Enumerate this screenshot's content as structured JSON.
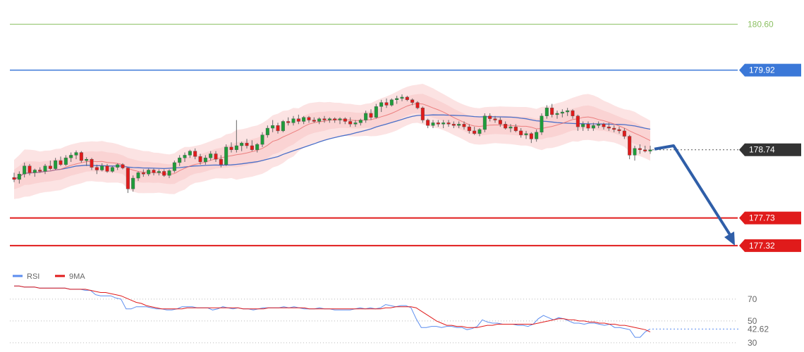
{
  "chart_data": {
    "type": "candlestick",
    "price_scale": {
      "min": 177.1,
      "max": 180.75
    },
    "levels": [
      {
        "label": "180.60",
        "value": 180.6,
        "color": "#8cc063",
        "style": "text"
      },
      {
        "label": "179.92",
        "value": 179.92,
        "color": "#3b78d8",
        "style": "tag"
      },
      {
        "label": "178.74",
        "value": 178.74,
        "color": "#333333",
        "style": "tag-dotted"
      },
      {
        "label": "177.73",
        "value": 177.73,
        "color": "#e01b1b",
        "style": "tag"
      },
      {
        "label": "177.32",
        "value": 177.32,
        "color": "#e01b1b",
        "style": "tag"
      }
    ],
    "colors": {
      "up": "#1e9c3a",
      "down": "#e01b1b",
      "band": "#fbd9d9",
      "ma_fast": "#e86a6a",
      "ma_slow": "#4a6fc8",
      "arrow": "#2f5ea8"
    },
    "candles": [
      [
        178.33,
        178.4,
        178.26,
        178.3
      ],
      [
        178.3,
        178.42,
        178.24,
        178.38
      ],
      [
        178.38,
        178.55,
        178.33,
        178.5
      ],
      [
        178.5,
        178.53,
        178.36,
        178.4
      ],
      [
        178.4,
        178.46,
        178.34,
        178.44
      ],
      [
        178.44,
        178.48,
        178.4,
        178.42
      ],
      [
        178.42,
        178.53,
        178.38,
        178.5
      ],
      [
        178.5,
        178.58,
        178.44,
        178.46
      ],
      [
        178.46,
        178.62,
        178.44,
        178.58
      ],
      [
        178.58,
        178.64,
        178.5,
        178.52
      ],
      [
        178.52,
        178.66,
        178.5,
        178.62
      ],
      [
        178.62,
        178.7,
        178.56,
        178.66
      ],
      [
        178.66,
        178.73,
        178.6,
        178.7
      ],
      [
        178.7,
        178.72,
        178.55,
        178.58
      ],
      [
        178.58,
        178.63,
        178.5,
        178.6
      ],
      [
        178.6,
        178.62,
        178.44,
        178.48
      ],
      [
        178.48,
        178.52,
        178.38,
        178.44
      ],
      [
        178.44,
        178.54,
        178.42,
        178.5
      ],
      [
        178.5,
        178.53,
        178.4,
        178.42
      ],
      [
        178.42,
        178.5,
        178.4,
        178.48
      ],
      [
        178.48,
        178.54,
        178.44,
        178.52
      ],
      [
        178.52,
        178.54,
        178.45,
        178.47
      ],
      [
        178.47,
        178.48,
        178.1,
        178.16
      ],
      [
        178.16,
        178.36,
        178.12,
        178.32
      ],
      [
        178.32,
        178.42,
        178.28,
        178.4
      ],
      [
        178.4,
        178.45,
        178.34,
        178.38
      ],
      [
        178.38,
        178.46,
        178.35,
        178.44
      ],
      [
        178.44,
        178.46,
        178.36,
        178.4
      ],
      [
        178.4,
        178.45,
        178.36,
        178.42
      ],
      [
        178.42,
        178.45,
        178.34,
        178.36
      ],
      [
        178.36,
        178.45,
        178.32,
        178.43
      ],
      [
        178.43,
        178.58,
        178.4,
        178.55
      ],
      [
        178.55,
        178.66,
        178.5,
        178.62
      ],
      [
        178.62,
        178.7,
        178.56,
        178.66
      ],
      [
        178.66,
        178.74,
        178.62,
        178.72
      ],
      [
        178.72,
        178.76,
        178.6,
        178.64
      ],
      [
        178.64,
        178.68,
        178.52,
        178.56
      ],
      [
        178.56,
        178.66,
        178.52,
        178.62
      ],
      [
        178.62,
        178.72,
        178.58,
        178.68
      ],
      [
        178.68,
        178.72,
        178.56,
        178.6
      ],
      [
        178.6,
        178.66,
        178.48,
        178.52
      ],
      [
        178.52,
        178.82,
        178.5,
        178.78
      ],
      [
        178.78,
        178.85,
        178.7,
        178.74
      ],
      [
        178.74,
        179.18,
        178.7,
        178.8
      ],
      [
        178.8,
        178.86,
        178.72,
        178.84
      ],
      [
        178.84,
        178.9,
        178.76,
        178.8
      ],
      [
        178.8,
        178.88,
        178.72,
        178.74
      ],
      [
        178.74,
        178.84,
        178.7,
        178.82
      ],
      [
        178.82,
        179.0,
        178.78,
        178.96
      ],
      [
        178.96,
        179.1,
        178.92,
        179.06
      ],
      [
        179.06,
        179.18,
        179.0,
        179.1
      ],
      [
        179.1,
        179.14,
        178.98,
        179.02
      ],
      [
        179.02,
        179.18,
        179.0,
        179.16
      ],
      [
        179.16,
        179.22,
        179.1,
        179.14
      ],
      [
        179.14,
        179.24,
        179.1,
        179.2
      ],
      [
        179.2,
        179.26,
        179.12,
        179.16
      ],
      [
        179.16,
        179.24,
        179.12,
        179.22
      ],
      [
        179.22,
        179.24,
        179.14,
        179.18
      ],
      [
        179.18,
        179.22,
        179.14,
        179.16
      ],
      [
        179.16,
        179.22,
        179.12,
        179.2
      ],
      [
        179.2,
        179.24,
        179.14,
        179.18
      ],
      [
        179.18,
        179.22,
        179.14,
        179.2
      ],
      [
        179.2,
        179.22,
        179.14,
        179.18
      ],
      [
        179.18,
        179.22,
        179.12,
        179.2
      ],
      [
        179.2,
        179.22,
        179.12,
        179.16
      ],
      [
        179.16,
        179.22,
        179.08,
        179.12
      ],
      [
        179.12,
        179.18,
        179.08,
        179.14
      ],
      [
        179.14,
        179.2,
        179.1,
        179.18
      ],
      [
        179.18,
        179.32,
        179.14,
        179.28
      ],
      [
        179.28,
        179.34,
        179.18,
        179.22
      ],
      [
        179.22,
        179.42,
        179.2,
        179.38
      ],
      [
        179.38,
        179.48,
        179.3,
        179.44
      ],
      [
        179.44,
        179.5,
        179.36,
        179.4
      ],
      [
        179.4,
        179.5,
        179.38,
        179.48
      ],
      [
        179.48,
        179.54,
        179.42,
        179.5
      ],
      [
        179.5,
        179.56,
        179.46,
        179.52
      ],
      [
        179.52,
        179.54,
        179.46,
        179.48
      ],
      [
        179.48,
        179.5,
        179.4,
        179.44
      ],
      [
        179.44,
        179.46,
        179.34,
        179.36
      ],
      [
        179.36,
        179.38,
        179.14,
        179.18
      ],
      [
        179.18,
        179.2,
        179.06,
        179.1
      ],
      [
        179.1,
        179.18,
        179.06,
        179.14
      ],
      [
        179.14,
        179.18,
        179.08,
        179.12
      ],
      [
        179.12,
        179.18,
        179.06,
        179.14
      ],
      [
        179.14,
        179.18,
        179.08,
        179.12
      ],
      [
        179.12,
        179.16,
        179.06,
        179.1
      ],
      [
        179.1,
        179.16,
        179.06,
        179.12
      ],
      [
        179.12,
        179.16,
        179.04,
        179.08
      ],
      [
        179.08,
        179.12,
        178.98,
        179.02
      ],
      [
        179.02,
        179.08,
        178.96,
        178.98
      ],
      [
        178.98,
        179.06,
        178.94,
        179.04
      ],
      [
        179.04,
        179.28,
        179.0,
        179.24
      ],
      [
        179.24,
        179.28,
        179.16,
        179.2
      ],
      [
        179.2,
        179.24,
        179.14,
        179.18
      ],
      [
        179.18,
        179.22,
        179.08,
        179.12
      ],
      [
        179.12,
        179.16,
        179.04,
        179.06
      ],
      [
        179.06,
        179.12,
        179.0,
        179.08
      ],
      [
        179.08,
        179.12,
        179.0,
        179.02
      ],
      [
        179.02,
        179.06,
        178.92,
        178.96
      ],
      [
        178.96,
        179.02,
        178.9,
        178.98
      ],
      [
        178.98,
        179.0,
        178.84,
        178.9
      ],
      [
        178.9,
        179.04,
        178.86,
        179.0
      ],
      [
        179.0,
        179.28,
        178.96,
        179.24
      ],
      [
        179.24,
        179.4,
        179.2,
        179.36
      ],
      [
        179.36,
        179.42,
        179.22,
        179.26
      ],
      [
        179.26,
        179.32,
        179.2,
        179.28
      ],
      [
        179.28,
        179.34,
        179.22,
        179.3
      ],
      [
        179.3,
        179.36,
        179.24,
        179.32
      ],
      [
        179.32,
        179.34,
        179.2,
        179.24
      ],
      [
        179.24,
        179.26,
        179.02,
        179.08
      ],
      [
        179.08,
        179.16,
        179.02,
        179.12
      ],
      [
        179.12,
        179.16,
        179.02,
        179.06
      ],
      [
        179.06,
        179.14,
        179.02,
        179.1
      ],
      [
        179.1,
        179.16,
        179.06,
        179.12
      ],
      [
        179.12,
        179.14,
        179.04,
        179.08
      ],
      [
        179.08,
        179.14,
        179.02,
        179.06
      ],
      [
        179.06,
        179.1,
        179.0,
        179.04
      ],
      [
        179.04,
        179.08,
        178.98,
        179.02
      ],
      [
        179.02,
        179.06,
        178.9,
        178.94
      ],
      [
        178.94,
        178.96,
        178.6,
        178.66
      ],
      [
        178.66,
        178.8,
        178.58,
        178.76
      ],
      [
        178.76,
        178.82,
        178.68,
        178.74
      ],
      [
        178.74,
        178.8,
        178.7,
        178.72
      ],
      [
        178.72,
        178.8,
        178.68,
        178.74
      ]
    ],
    "rsi_scale": {
      "min": 28,
      "max": 86
    },
    "rsi_ticks": [
      {
        "label": "70",
        "value": 70
      },
      {
        "label": "50",
        "value": 50
      },
      {
        "label": "30",
        "value": 30
      }
    ],
    "rsi_last_label": "42.62",
    "rsi_last_value": 42.62,
    "rsi": [
      82,
      82,
      81,
      81,
      81,
      80,
      80,
      80,
      80,
      80,
      80,
      79,
      79,
      79,
      78,
      78,
      74,
      73,
      73,
      73,
      71,
      70,
      61,
      61,
      63,
      63,
      63,
      62,
      61,
      61,
      60,
      60,
      61,
      63,
      63,
      63,
      62,
      62,
      62,
      60,
      61,
      63,
      62,
      61,
      62,
      61,
      61,
      60,
      61,
      62,
      62,
      62,
      62,
      63,
      62,
      63,
      62,
      61,
      61,
      61,
      62,
      61,
      61,
      60,
      60,
      60,
      60,
      61,
      62,
      61,
      62,
      61,
      62,
      65,
      64,
      63,
      64,
      64,
      62,
      52,
      44,
      44,
      45,
      45,
      44,
      45,
      45,
      44,
      44,
      42,
      43,
      45,
      51,
      49,
      48,
      48,
      47,
      47,
      47,
      46,
      46,
      45,
      47,
      52,
      55,
      53,
      51,
      53,
      52,
      50,
      48,
      48,
      47,
      48,
      48,
      47,
      46,
      47,
      44,
      44,
      43,
      42,
      35,
      35,
      40,
      42.62
    ],
    "rsi_ma": [
      82,
      82,
      81,
      81,
      81,
      80,
      80,
      80,
      80,
      80,
      80,
      79,
      79,
      79,
      79,
      78,
      77,
      76,
      76,
      75,
      74,
      73,
      71,
      69,
      67,
      66,
      64,
      63,
      62,
      61,
      61,
      61,
      61,
      61,
      62,
      62,
      62,
      62,
      62,
      62,
      62,
      62,
      62,
      62,
      62,
      61,
      61,
      61,
      61,
      61,
      62,
      62,
      62,
      62,
      62,
      62,
      62,
      62,
      61,
      61,
      61,
      61,
      61,
      61,
      61,
      61,
      61,
      61,
      61,
      61,
      61,
      61,
      61,
      62,
      62,
      63,
      63,
      63,
      63,
      62,
      59,
      56,
      53,
      50,
      48,
      46,
      46,
      45,
      45,
      44,
      44,
      44,
      45,
      46,
      46,
      47,
      47,
      47,
      47,
      47,
      47,
      47,
      47,
      48,
      49,
      50,
      51,
      52,
      52,
      51,
      51,
      50,
      50,
      49,
      49,
      48,
      48,
      47,
      47,
      46,
      46,
      45,
      44,
      43,
      42,
      40
    ]
  },
  "legend": [
    {
      "label": "RSI",
      "color": "#5b8def"
    },
    {
      "label": "9MA",
      "color": "#e01b1b"
    }
  ]
}
